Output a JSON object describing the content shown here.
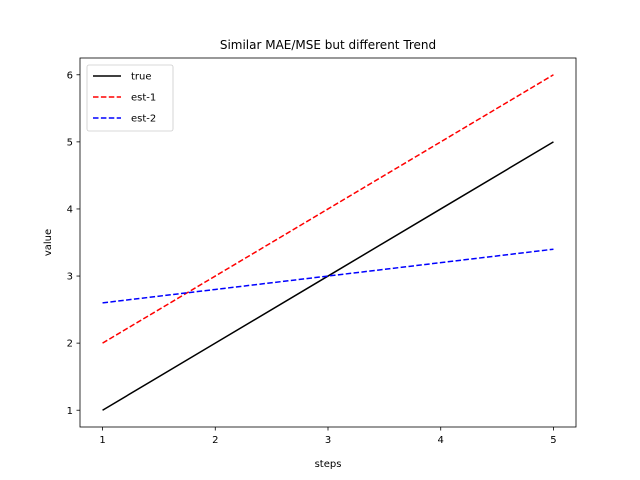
{
  "chart_data": {
    "type": "line",
    "title": "Similar MAE/MSE but different Trend",
    "xlabel": "steps",
    "ylabel": "value",
    "x": [
      1,
      2,
      3,
      4,
      5
    ],
    "xlim": [
      0.8,
      5.2
    ],
    "ylim": [
      0.75,
      6.25
    ],
    "xticks": [
      "1",
      "2",
      "3",
      "4",
      "5"
    ],
    "yticks": [
      "1",
      "2",
      "3",
      "4",
      "5",
      "6"
    ],
    "grid": false,
    "legend_position": "top-left",
    "series": [
      {
        "name": "true",
        "values": [
          1,
          2,
          3,
          4,
          5
        ],
        "color": "#000000",
        "style": "solid"
      },
      {
        "name": "est-1",
        "values": [
          2,
          3,
          4,
          5,
          6
        ],
        "color": "#ff0000",
        "style": "dashed"
      },
      {
        "name": "est-2",
        "values": [
          2.6,
          2.8,
          3.0,
          3.2,
          3.4
        ],
        "color": "#0000ff",
        "style": "dashed"
      }
    ]
  }
}
